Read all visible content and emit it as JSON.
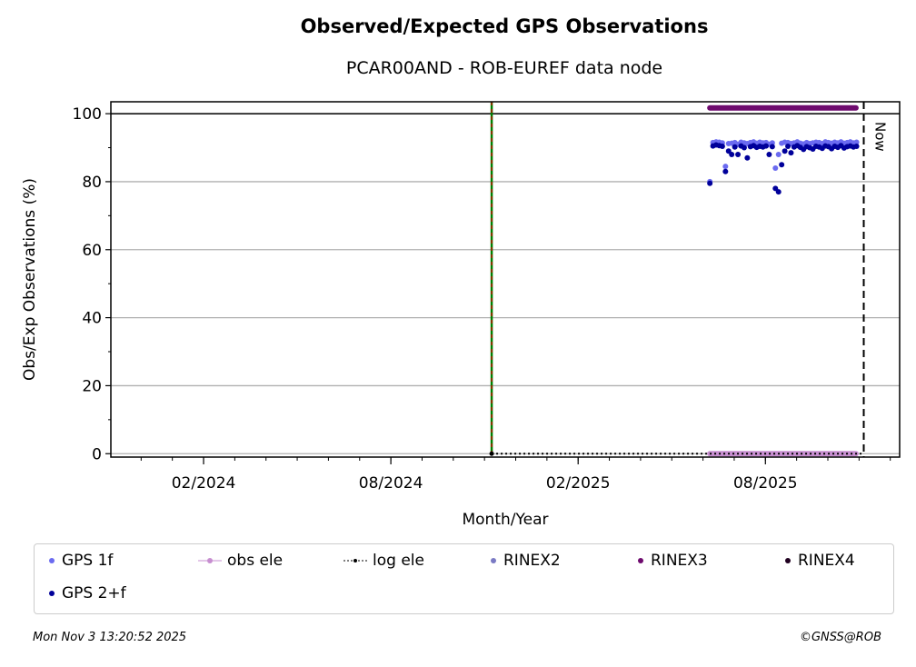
{
  "chart_data": {
    "type": "scatter",
    "title": "Observed/Expected GPS Observations",
    "subtitle": "PCAR00AND - ROB-EUREF data node",
    "xlabel": "Month/Year",
    "ylabel": "Obs/Exp Observations (%)",
    "x_units": "months since 01/2024",
    "xlim": [
      -1.97,
      23.3
    ],
    "ylim": [
      -1,
      103.5
    ],
    "x_ticks": [
      {
        "value": 1,
        "label": "02/2024"
      },
      {
        "value": 7,
        "label": "08/2024"
      },
      {
        "value": 13,
        "label": "02/2025"
      },
      {
        "value": 19,
        "label": "08/2025"
      }
    ],
    "y_ticks": [
      0,
      20,
      40,
      60,
      80,
      100
    ],
    "grid": "horizontal",
    "reference_line_100": 100,
    "now_label": "Now",
    "now_x": 22.15,
    "event_line_x": 10.23,
    "series_x_start": 17.22,
    "series_x_step": 0.1,
    "series": [
      {
        "name": "GPS 1f",
        "color": "#6b6bf0",
        "values": [
          80,
          91.5,
          91.7,
          91.6,
          91.4,
          84.5,
          91.2,
          91.3,
          91.5,
          91.0,
          91.6,
          91.4,
          91.2,
          91.5,
          91.7,
          91.3,
          91.6,
          91.4,
          91.5,
          91.0,
          91.4,
          84,
          88,
          91.3,
          91.6,
          91.5,
          91.2,
          91.4,
          91.7,
          91.3,
          91.1,
          91.5,
          91.2,
          91.4,
          91.6,
          91.5,
          91.2,
          91.7,
          91.5,
          91.3,
          91.6,
          91.4,
          91.7,
          91.3,
          91.5,
          91.7,
          91.4,
          91.6
        ]
      },
      {
        "name": "GPS 2+f",
        "color": "#00009a",
        "values": [
          79.5,
          90.5,
          90.8,
          90.6,
          90.4,
          83,
          89,
          88,
          90.2,
          88,
          90.5,
          90,
          87,
          90.3,
          90.6,
          90.1,
          90.4,
          90.2,
          90.5,
          88,
          90.3,
          78,
          77,
          85,
          89,
          90.4,
          88.5,
          90.2,
          90.6,
          90.1,
          89.5,
          90.3,
          90,
          89.6,
          90.4,
          90.2,
          89.8,
          90.5,
          90.3,
          89.7,
          90.4,
          90.1,
          90.6,
          89.9,
          90.3,
          90.5,
          90.2,
          90.4
        ]
      },
      {
        "name": "obs ele",
        "color": "#c78ed0",
        "constant": 0,
        "x_range": [
          17.22,
          21.9
        ]
      },
      {
        "name": "log ele",
        "color": "#000000",
        "constant": 0,
        "x_range": [
          10.23,
          22.15
        ]
      },
      {
        "name": "RINEX2",
        "color": "#7a7ac4"
      },
      {
        "name": "RINEX3",
        "color": "#6e0a6e",
        "constant": 101.7,
        "x_range": [
          17.22,
          21.9
        ]
      },
      {
        "name": "RINEX4",
        "color": "#200020"
      }
    ],
    "legend_position": "bottom"
  },
  "footer": {
    "timestamp": "Mon Nov  3 13:20:52 2025",
    "credit": "©GNSS@ROB"
  }
}
